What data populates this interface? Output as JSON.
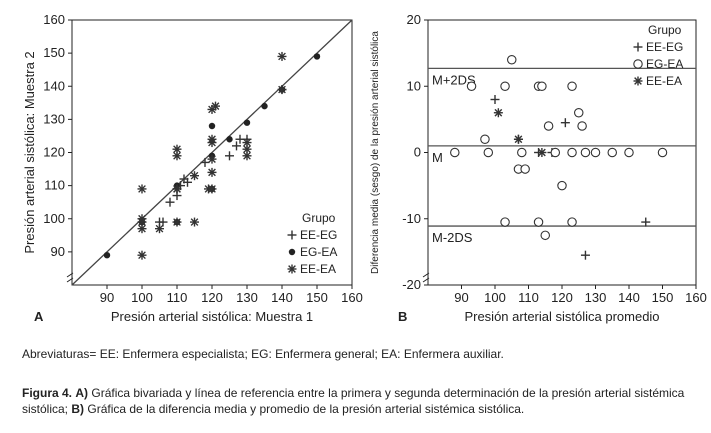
{
  "chart_data": [
    {
      "type": "scatter",
      "panel_label": "A",
      "xlabel": "Presión arterial sistólica: Muestra 1",
      "ylabel": "Presión arterial sistólica: Muestra 2",
      "xlim": [
        80,
        160
      ],
      "ylim": [
        80,
        160
      ],
      "xticks": [
        90,
        100,
        110,
        120,
        130,
        140,
        150,
        160
      ],
      "yticks": [
        90,
        100,
        110,
        120,
        130,
        140,
        150,
        160
      ],
      "reference_line": [
        [
          80,
          80
        ],
        [
          160,
          160
        ]
      ],
      "legend": {
        "title": "Grupo",
        "entries": [
          "EE-EG",
          "EG-EA",
          "EE-EA"
        ]
      },
      "series": [
        {
          "name": "EE-EG",
          "marker": "plus",
          "points": [
            [
              105,
              99
            ],
            [
              106,
              99
            ],
            [
              108,
              105
            ],
            [
              110,
              107
            ],
            [
              111,
              110
            ],
            [
              112,
              112
            ],
            [
              113,
              111
            ],
            [
              118,
              117
            ],
            [
              125,
              119
            ],
            [
              127,
              122
            ],
            [
              128,
              124
            ],
            [
              130,
              124
            ],
            [
              140,
              139
            ]
          ]
        },
        {
          "name": "EG-EA",
          "marker": "dot",
          "points": [
            [
              90,
              89
            ],
            [
              100,
              99
            ],
            [
              110,
              99
            ],
            [
              110,
              110
            ],
            [
              120,
              109
            ],
            [
              120,
              119
            ],
            [
              120,
              128
            ],
            [
              125,
              124
            ],
            [
              130,
              129
            ],
            [
              135,
              134
            ],
            [
              150,
              149
            ],
            [
              140,
              139
            ]
          ]
        },
        {
          "name": "EE-EA",
          "marker": "star",
          "points": [
            [
              100,
              89
            ],
            [
              100,
              97
            ],
            [
              100,
              99
            ],
            [
              100,
              100
            ],
            [
              100,
              109
            ],
            [
              105,
              97
            ],
            [
              110,
              99
            ],
            [
              110,
              109
            ],
            [
              110,
              119
            ],
            [
              110,
              121
            ],
            [
              110,
              109
            ],
            [
              115,
              99
            ],
            [
              115,
              113
            ],
            [
              119,
              109
            ],
            [
              120,
              109
            ],
            [
              120,
              114
            ],
            [
              120,
              118
            ],
            [
              120,
              123
            ],
            [
              120,
              124
            ],
            [
              120,
              133
            ],
            [
              121,
              134
            ],
            [
              130,
              119
            ],
            [
              130,
              121
            ],
            [
              130,
              123
            ],
            [
              140,
              149
            ],
            [
              140,
              139
            ]
          ]
        }
      ]
    },
    {
      "type": "scatter",
      "panel_label": "B",
      "xlabel": "Presión arterial sistólica promedio",
      "ylabel": "Diferencia media (sesgo) de la presión arterial sistólica",
      "xlim": [
        80,
        160
      ],
      "ylim": [
        -20,
        20
      ],
      "xticks": [
        90,
        100,
        110,
        120,
        130,
        140,
        150,
        160
      ],
      "yticks": [
        -20,
        -10,
        0,
        10,
        20
      ],
      "reference_lines": [
        {
          "label": "M+2DS",
          "y": 12.7
        },
        {
          "label": "M",
          "y": 1.0
        },
        {
          "label": "M-2DS",
          "y": -11.1
        }
      ],
      "legend": {
        "title": "Grupo",
        "entries": [
          "EE-EG",
          "EG-EA",
          "EE-EA"
        ]
      },
      "series": [
        {
          "name": "EE-EG",
          "marker": "plus",
          "points": [
            [
              100,
              8
            ],
            [
              107,
              2
            ],
            [
              113,
              0
            ],
            [
              117,
              0
            ],
            [
              121,
              4.5
            ],
            [
              127,
              -15.5
            ],
            [
              145,
              -10.5
            ]
          ]
        },
        {
          "name": "EG-EA",
          "marker": "circle",
          "points": [
            [
              88,
              0
            ],
            [
              93,
              10
            ],
            [
              97,
              2
            ],
            [
              98,
              0
            ],
            [
              103,
              10
            ],
            [
              103,
              -10.5
            ],
            [
              105,
              14
            ],
            [
              107,
              -2.5
            ],
            [
              108,
              0
            ],
            [
              109,
              -2.5
            ],
            [
              113,
              10
            ],
            [
              113,
              -10.5
            ],
            [
              114,
              10
            ],
            [
              115,
              -12.5
            ],
            [
              116,
              4
            ],
            [
              118,
              0
            ],
            [
              120,
              -5
            ],
            [
              123,
              0
            ],
            [
              123,
              10
            ],
            [
              123,
              -10.5
            ],
            [
              125,
              6
            ],
            [
              126,
              4
            ],
            [
              127,
              0
            ],
            [
              130,
              0
            ],
            [
              135,
              0
            ],
            [
              140,
              0
            ],
            [
              150,
              0
            ]
          ]
        },
        {
          "name": "EE-EA",
          "marker": "star",
          "points": [
            [
              101,
              6
            ],
            [
              107,
              2
            ],
            [
              114,
              0
            ]
          ]
        }
      ]
    }
  ],
  "footnote": "Abreviaturas= EE: Enfermera especialista; EG: Enfermera general; EA: Enfermera auxiliar.",
  "caption": {
    "figure_label": "Figura 4.",
    "part_a_label": "A)",
    "part_a_text": "Gráfica bivariada y línea de referencia entre la primera y segunda determinación de la presión arterial sistémica sistólica;",
    "part_b_label": "B)",
    "part_b_text": "Gráfica de la diferencia media y promedio de la presión arterial sistémica sistólica."
  }
}
